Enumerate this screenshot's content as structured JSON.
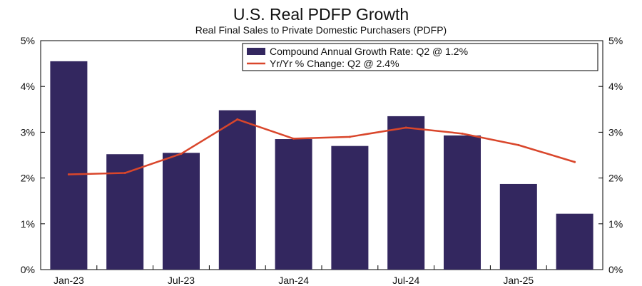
{
  "chart_data": {
    "type": "bar",
    "title": "U.S. Real PDFP Growth",
    "subtitle": "Real Final Sales to Private Domestic Purchasers (PDFP)",
    "categories": [
      "Q1-23",
      "Q2-23",
      "Q3-23",
      "Q4-23",
      "Q1-24",
      "Q2-24",
      "Q3-24",
      "Q4-24",
      "Q1-25",
      "Q2-25"
    ],
    "x_tick_labels": [
      "Jan-23",
      "Jul-23",
      "Jan-24",
      "Jul-24",
      "Jan-25"
    ],
    "x_tick_category_index": [
      0,
      2,
      4,
      6,
      8
    ],
    "series": [
      {
        "name": "Compound Annual Growth Rate: Q2 @ 1.2%",
        "type": "bar",
        "color": "#33275f",
        "values": [
          4.55,
          2.52,
          2.55,
          3.48,
          2.85,
          2.7,
          3.35,
          2.93,
          1.87,
          1.22
        ]
      },
      {
        "name": "Yr/Yr % Change: Q2 @ 2.4%",
        "type": "line",
        "color": "#d9462b",
        "values": [
          2.08,
          2.11,
          2.53,
          3.28,
          2.86,
          2.9,
          3.1,
          2.97,
          2.72,
          2.35
        ]
      }
    ],
    "y_ticks": [
      "0%",
      "1%",
      "2%",
      "3%",
      "4%",
      "5%"
    ],
    "ylim": [
      0,
      5
    ],
    "legend_position": "top-right",
    "grid": false
  }
}
